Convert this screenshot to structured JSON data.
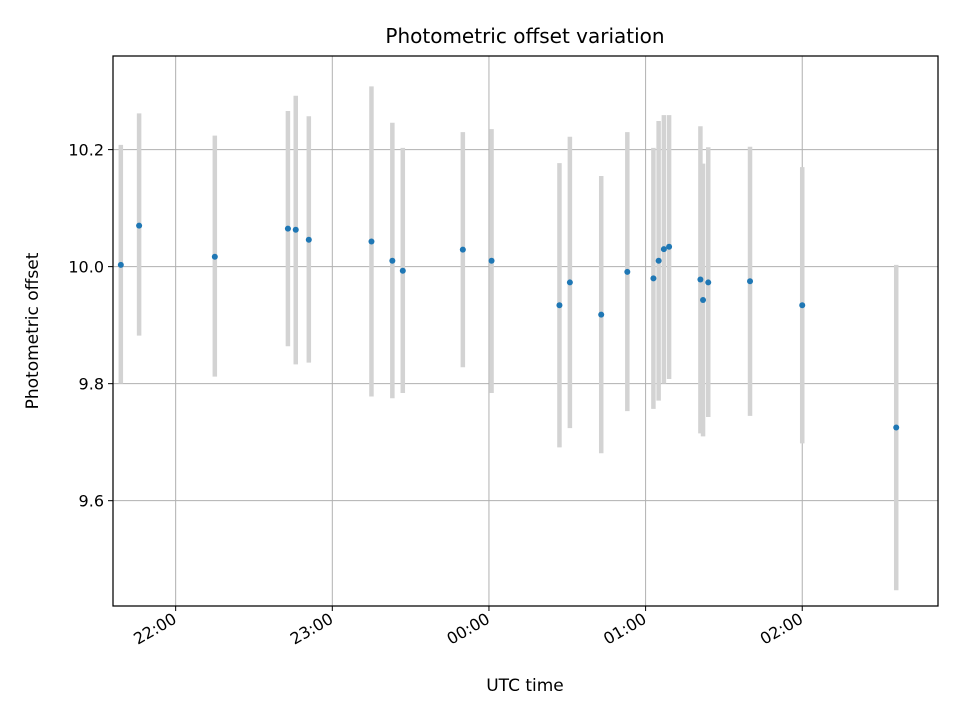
{
  "chart_data": {
    "type": "scatter",
    "title": "Photometric offset variation",
    "xlabel": "UTC time",
    "ylabel": "Photometric offset",
    "grid": true,
    "x_axis_type": "time",
    "xlim": [
      "21:36",
      "02:52"
    ],
    "ylim": [
      9.42,
      10.36
    ],
    "x_ticks": [
      "22:00",
      "23:00",
      "00:00",
      "01:00",
      "02:00"
    ],
    "y_ticks": [
      "9.6",
      "9.8",
      "10.0",
      "10.2"
    ],
    "y_tick_values": [
      9.6,
      9.8,
      10.0,
      10.2
    ],
    "colors": {
      "point": "#1f77b4",
      "errorbar": "#d3d3d3",
      "grid": "#b0b0b0"
    },
    "points": [
      {
        "x": "21:39",
        "y": 10.003,
        "yerr_low": 9.8,
        "yerr_high": 10.208
      },
      {
        "x": "21:46",
        "y": 10.07,
        "yerr_low": 9.882,
        "yerr_high": 10.262
      },
      {
        "x": "22:15",
        "y": 10.017,
        "yerr_low": 9.812,
        "yerr_high": 10.224
      },
      {
        "x": "22:43",
        "y": 10.065,
        "yerr_low": 9.864,
        "yerr_high": 10.266
      },
      {
        "x": "22:46",
        "y": 10.063,
        "yerr_low": 9.833,
        "yerr_high": 10.292
      },
      {
        "x": "22:51",
        "y": 10.046,
        "yerr_low": 9.836,
        "yerr_high": 10.257
      },
      {
        "x": "23:15",
        "y": 10.043,
        "yerr_low": 9.778,
        "yerr_high": 10.308
      },
      {
        "x": "23:23",
        "y": 10.01,
        "yerr_low": 9.775,
        "yerr_high": 10.246
      },
      {
        "x": "23:27",
        "y": 9.993,
        "yerr_low": 9.784,
        "yerr_high": 10.203
      },
      {
        "x": "23:50",
        "y": 10.029,
        "yerr_low": 9.828,
        "yerr_high": 10.23
      },
      {
        "x": "00:01",
        "y": 10.01,
        "yerr_low": 9.784,
        "yerr_high": 10.235
      },
      {
        "x": "00:27",
        "y": 9.934,
        "yerr_low": 9.691,
        "yerr_high": 10.177
      },
      {
        "x": "00:31",
        "y": 9.973,
        "yerr_low": 9.724,
        "yerr_high": 10.222
      },
      {
        "x": "00:43",
        "y": 9.918,
        "yerr_low": 9.681,
        "yerr_high": 10.155
      },
      {
        "x": "00:53",
        "y": 9.991,
        "yerr_low": 9.753,
        "yerr_high": 10.23
      },
      {
        "x": "01:03",
        "y": 9.98,
        "yerr_low": 9.757,
        "yerr_high": 10.203
      },
      {
        "x": "01:05",
        "y": 10.01,
        "yerr_low": 9.771,
        "yerr_high": 10.249
      },
      {
        "x": "01:07",
        "y": 10.03,
        "yerr_low": 9.8,
        "yerr_high": 10.259
      },
      {
        "x": "01:09",
        "y": 10.034,
        "yerr_low": 9.808,
        "yerr_high": 10.259
      },
      {
        "x": "01:21",
        "y": 9.978,
        "yerr_low": 9.715,
        "yerr_high": 10.24
      },
      {
        "x": "01:22",
        "y": 9.943,
        "yerr_low": 9.71,
        "yerr_high": 10.176
      },
      {
        "x": "01:24",
        "y": 9.973,
        "yerr_low": 9.743,
        "yerr_high": 10.204
      },
      {
        "x": "01:40",
        "y": 9.975,
        "yerr_low": 9.745,
        "yerr_high": 10.205
      },
      {
        "x": "02:00",
        "y": 9.934,
        "yerr_low": 9.698,
        "yerr_high": 10.17
      },
      {
        "x": "02:36",
        "y": 9.725,
        "yerr_low": 9.447,
        "yerr_high": 10.003
      }
    ]
  }
}
